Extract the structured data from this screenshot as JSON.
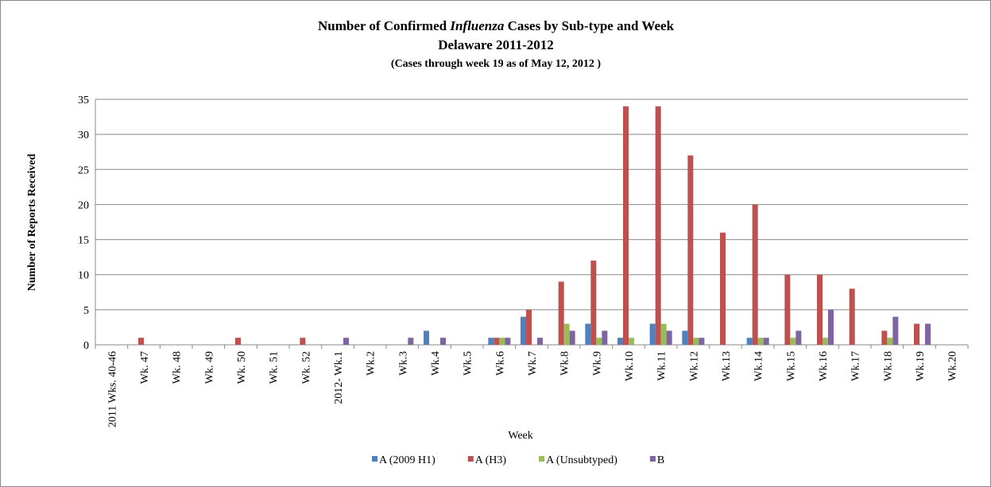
{
  "chart_data": {
    "type": "bar",
    "title": [
      "Number of Confirmed ",
      "Influenza",
      " Cases by Sub-type and Week"
    ],
    "subtitle": [
      "Delaware 2011-2012",
      "(Cases through  week 19 as of May 12, 2012 )"
    ],
    "x_label": "Week",
    "y_label": "Number of Reports Received",
    "categories": [
      "2011 Wks. 40-46",
      "Wk. 47",
      "Wk. 48",
      "Wk. 49",
      "Wk. 50",
      "Wk. 51",
      "Wk. 52",
      "2012- Wk.1",
      "Wk.2",
      "Wk.3",
      "Wk.4",
      "Wk.5",
      "Wk.6",
      "Wk.7",
      "Wk.8",
      "Wk.9",
      "Wk.10",
      "Wk.11",
      "Wk.12",
      "Wk.13",
      "Wk.14",
      "Wk.15",
      "Wk.16",
      "Wk.17",
      "Wk.18",
      "Wk.19",
      "Wk.20"
    ],
    "series": [
      {
        "name": "A (2009 H1)",
        "color": "#4f81bd",
        "values": [
          0,
          0,
          0,
          0,
          0,
          0,
          0,
          0,
          0,
          0,
          2,
          0,
          1,
          4,
          0,
          3,
          1,
          3,
          2,
          0,
          1,
          0,
          0,
          0,
          0,
          0,
          0
        ]
      },
      {
        "name": "A (H3)",
        "color": "#c0504d",
        "values": [
          0,
          1,
          0,
          0,
          1,
          0,
          1,
          0,
          0,
          0,
          0,
          0,
          1,
          5,
          9,
          12,
          34,
          34,
          27,
          16,
          20,
          10,
          10,
          8,
          2,
          3,
          0
        ]
      },
      {
        "name": "A (Unsubtyped)",
        "color": "#9bbb59",
        "values": [
          0,
          0,
          0,
          0,
          0,
          0,
          0,
          0,
          0,
          0,
          0,
          0,
          1,
          0,
          3,
          1,
          1,
          3,
          1,
          0,
          1,
          1,
          1,
          0,
          1,
          0,
          0
        ]
      },
      {
        "name": "B",
        "color": "#8064a2",
        "values": [
          0,
          0,
          0,
          0,
          0,
          0,
          0,
          1,
          0,
          1,
          1,
          0,
          1,
          1,
          2,
          2,
          0,
          2,
          1,
          0,
          1,
          2,
          5,
          0,
          4,
          3,
          0
        ]
      }
    ],
    "ylim": [
      0,
      35
    ],
    "yticks": [
      0,
      5,
      10,
      15,
      20,
      25,
      30,
      35
    ],
    "grid": true,
    "legend": "bottom"
  }
}
